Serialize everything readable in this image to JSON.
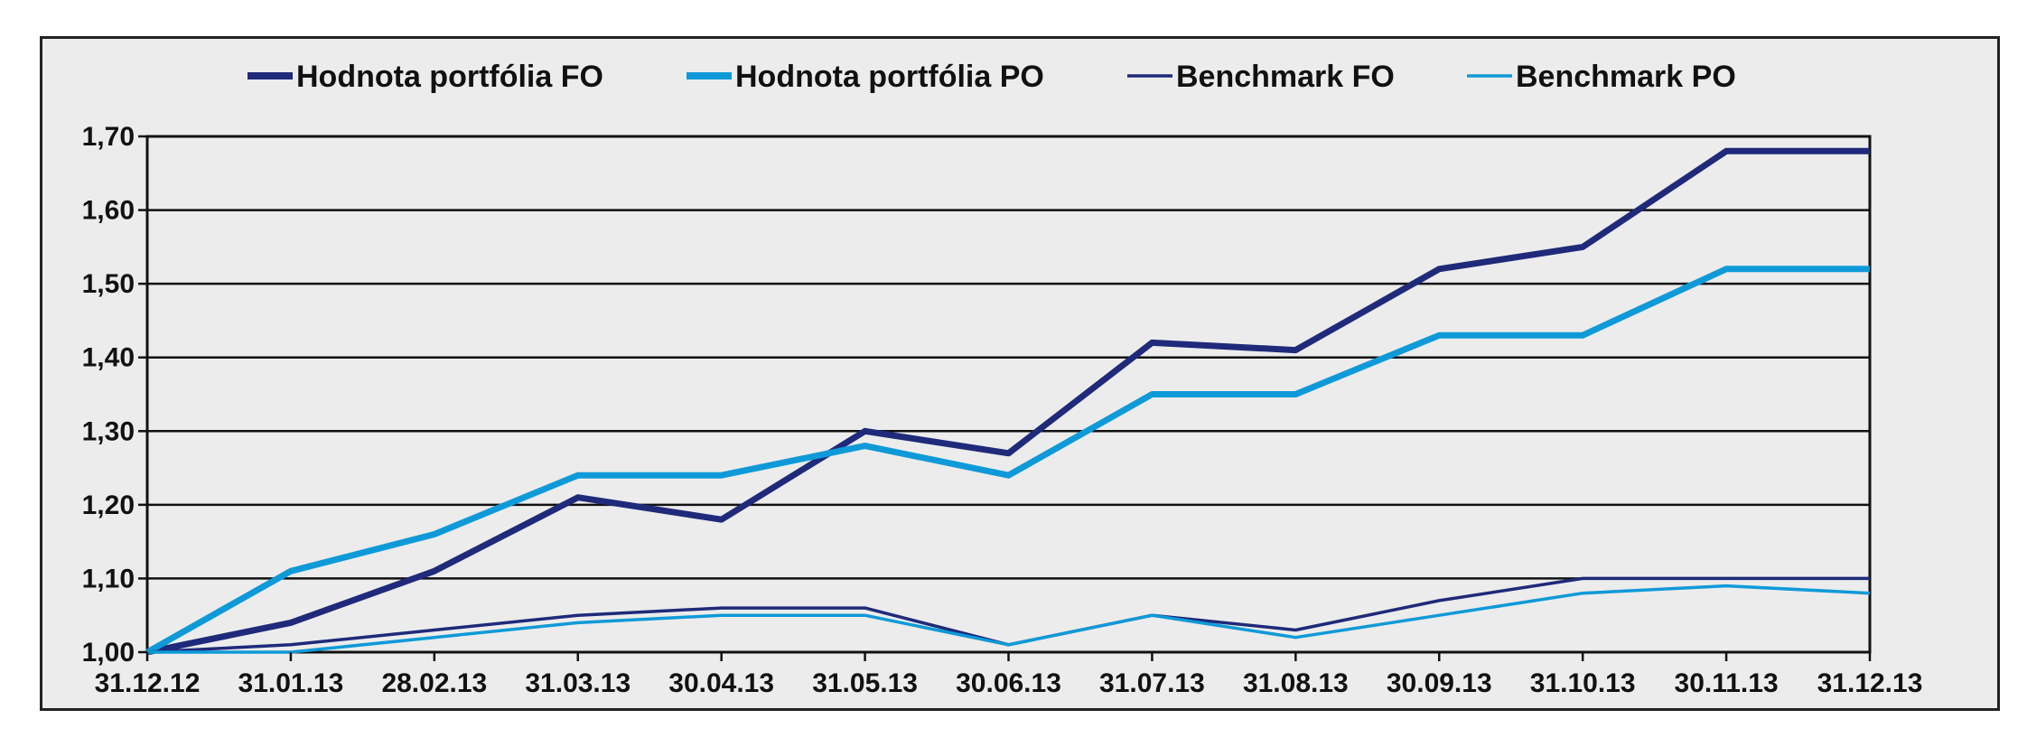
{
  "chart_data": {
    "type": "line",
    "title": "",
    "xlabel": "",
    "ylabel": "",
    "categories": [
      "31.12.12",
      "31.01.13",
      "28.02.13",
      "31.03.13",
      "30.04.13",
      "31.05.13",
      "30.06.13",
      "31.07.13",
      "31.08.13",
      "30.09.13",
      "31.10.13",
      "30.11.13",
      "31.12.13"
    ],
    "ylim": [
      1.0,
      1.7
    ],
    "yticks": [
      "1,00",
      "1,10",
      "1,20",
      "1,30",
      "1,40",
      "1,50",
      "1,60",
      "1,70"
    ],
    "ytick_values": [
      1.0,
      1.1,
      1.2,
      1.3,
      1.4,
      1.5,
      1.6,
      1.7
    ],
    "grid": true,
    "legend_position": "top",
    "series": [
      {
        "name": "Hodnota portfólia FO",
        "color": "#1f2a7a",
        "weight": "thick",
        "values": [
          1.0,
          1.04,
          1.11,
          1.21,
          1.18,
          1.3,
          1.27,
          1.42,
          1.41,
          1.52,
          1.55,
          1.68,
          1.68
        ]
      },
      {
        "name": "Hodnota portfólia PO",
        "color": "#0e9ad8",
        "weight": "thick",
        "values": [
          1.0,
          1.11,
          1.16,
          1.24,
          1.24,
          1.28,
          1.24,
          1.35,
          1.35,
          1.43,
          1.43,
          1.52,
          1.52
        ]
      },
      {
        "name": "Benchmark FO",
        "color": "#1f2a7a",
        "weight": "thin",
        "values": [
          1.0,
          1.01,
          1.03,
          1.05,
          1.06,
          1.06,
          1.01,
          1.05,
          1.03,
          1.07,
          1.1,
          1.1,
          1.1
        ]
      },
      {
        "name": "Benchmark PO",
        "color": "#0e9ad8",
        "weight": "thin",
        "values": [
          1.0,
          1.0,
          1.02,
          1.04,
          1.05,
          1.05,
          1.01,
          1.05,
          1.02,
          1.05,
          1.08,
          1.09,
          1.08
        ]
      }
    ]
  }
}
